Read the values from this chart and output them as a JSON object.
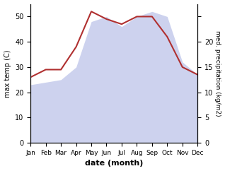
{
  "months": [
    "Jan",
    "Feb",
    "Mar",
    "Apr",
    "May",
    "Jun",
    "Jul",
    "Aug",
    "Sep",
    "Oct",
    "Nov",
    "Dec"
  ],
  "temp": [
    26,
    29,
    29,
    38,
    52,
    49,
    47,
    50,
    50,
    42,
    30,
    27
  ],
  "precip_left_scale": [
    23,
    24,
    25,
    30,
    48,
    50,
    46,
    50,
    52,
    50,
    32,
    27
  ],
  "temp_color": "#b03030",
  "precip_fill_color": "#b8c0e8",
  "temp_ylim": [
    0,
    55
  ],
  "precip_ylim": [
    0,
    55
  ],
  "left_yticks": [
    0,
    10,
    20,
    30,
    40,
    50
  ],
  "right_yticks_positions": [
    0,
    10,
    20,
    30,
    40,
    50
  ],
  "right_ytick_labels": [
    "0",
    "5",
    "10",
    "15",
    "20",
    ""
  ],
  "xlabel": "date (month)",
  "ylabel_left": "max temp (C)",
  "ylabel_right": "med. precipitation (kg/m2)",
  "bg_color": "#ffffff"
}
